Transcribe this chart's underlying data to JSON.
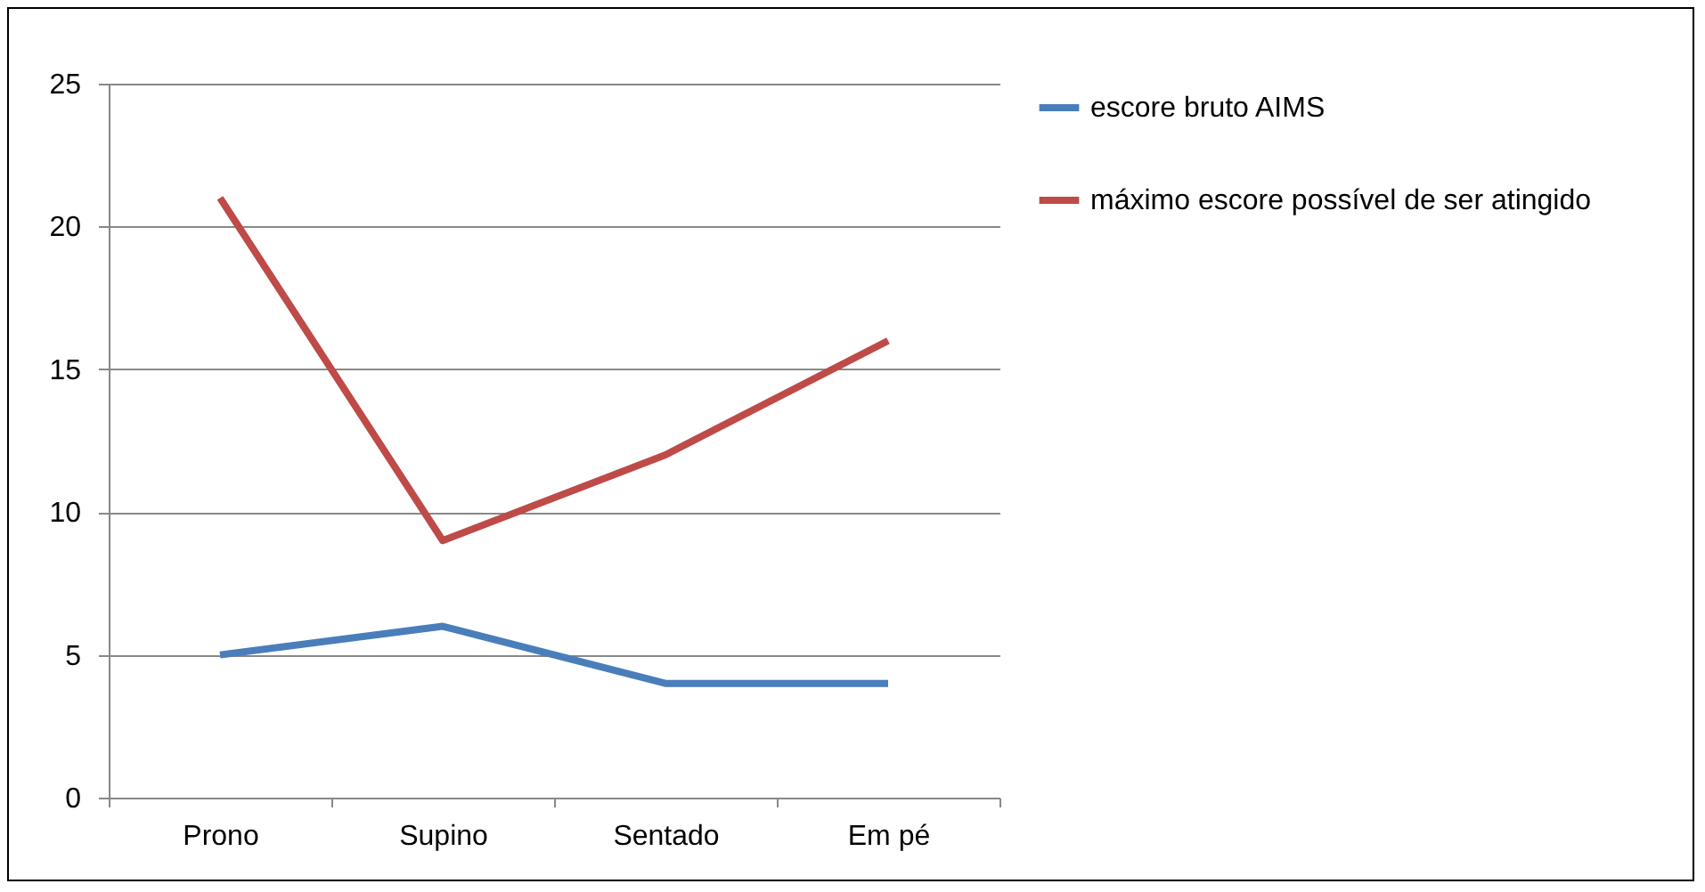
{
  "chart_data": {
    "type": "line",
    "categories": [
      "Prono",
      "Supino",
      "Sentado",
      "Em pé"
    ],
    "series": [
      {
        "name": "escore bruto AIMS",
        "color": "#4a7ebb",
        "values": [
          5,
          6,
          4,
          4
        ]
      },
      {
        "name": "máximo escore possível de ser atingido",
        "color": "#be4b48",
        "values": [
          21,
          9,
          12,
          16
        ]
      }
    ],
    "ylim": [
      0,
      25
    ],
    "yticks": [
      0,
      5,
      10,
      15,
      20,
      25
    ],
    "grid": "y",
    "legend": "right",
    "marker": "none",
    "line_style": "solid"
  }
}
